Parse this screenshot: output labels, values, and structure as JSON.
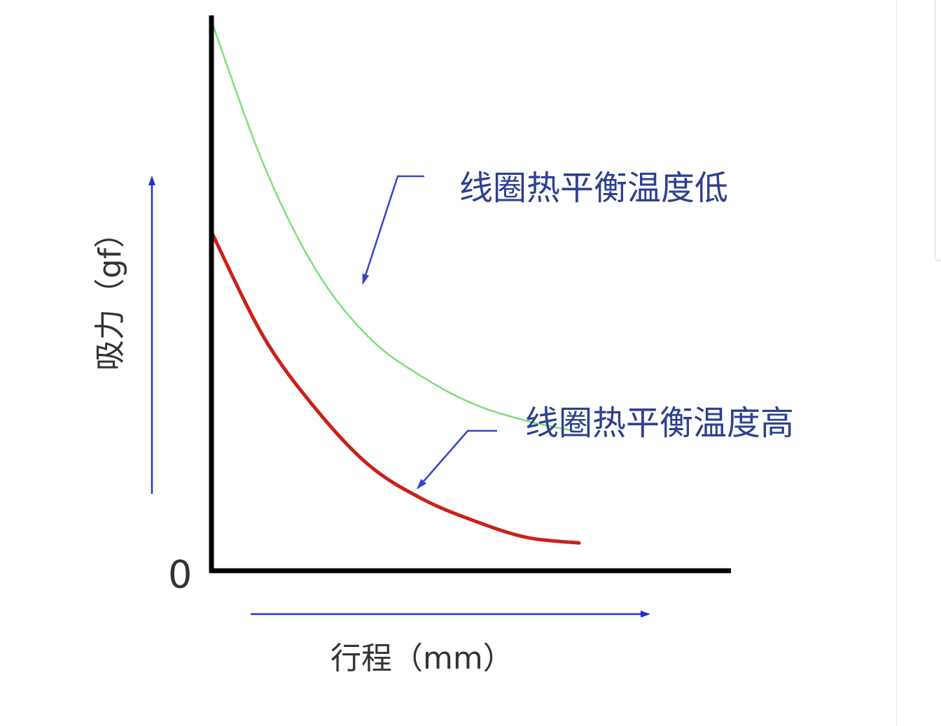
{
  "chart_data": {
    "type": "line",
    "title": "",
    "xlabel": "行程（mm）",
    "ylabel": "吸力（gf）",
    "origin_label": "0",
    "xlim": [
      0,
      1
    ],
    "ylim": [
      0,
      1
    ],
    "grid": false,
    "legend": "none",
    "series": [
      {
        "name": "线圈热平衡温度低",
        "color": "#7ddf7d",
        "x": [
          0,
          0.1,
          0.2,
          0.3,
          0.4,
          0.5,
          0.6,
          0.7
        ],
        "y": [
          0.99,
          0.73,
          0.54,
          0.42,
          0.35,
          0.3,
          0.27,
          0.25
        ]
      },
      {
        "name": "线圈热平衡温度高",
        "color": "#cc1f1a",
        "x": [
          0,
          0.1,
          0.2,
          0.3,
          0.4,
          0.5,
          0.6,
          0.7
        ],
        "y": [
          0.61,
          0.42,
          0.29,
          0.19,
          0.13,
          0.09,
          0.06,
          0.05
        ]
      }
    ],
    "annotations": [
      {
        "text": "线圈热平衡温度低",
        "color": "#2f3f8f",
        "arrow_color": "#3344cc",
        "points_to_series": 0
      },
      {
        "text": "线圈热平衡温度高",
        "color": "#2f3f8f",
        "arrow_color": "#3344cc",
        "points_to_series": 1
      }
    ],
    "axis_color": "#000000",
    "direction_arrow_color": "#2233cc"
  }
}
